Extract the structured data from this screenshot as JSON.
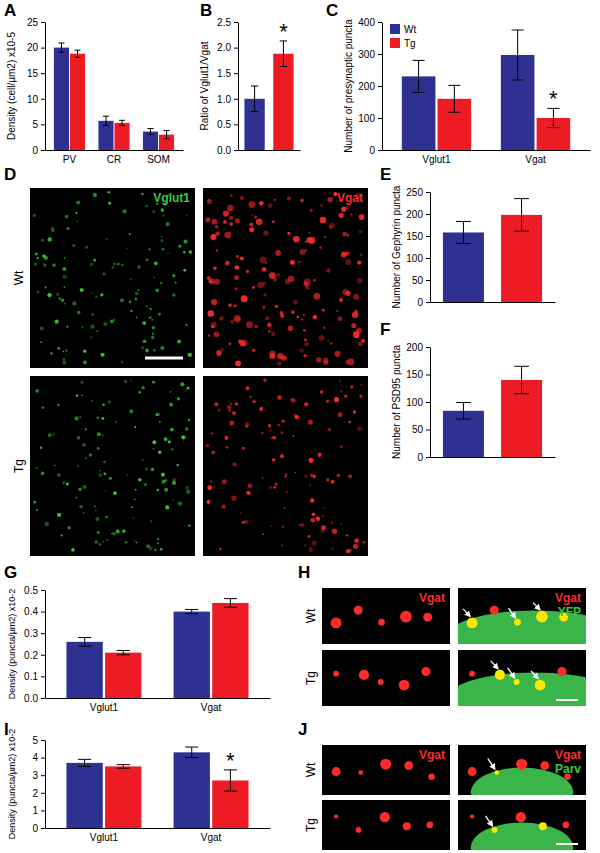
{
  "chart_data": [
    {
      "panel": "A",
      "type": "bar",
      "y_label": "Density (cell/µm2) x10-5",
      "categories": [
        "PV",
        "CR",
        "SOM"
      ],
      "series": [
        {
          "color": "#2e3192",
          "values": [
            20.0,
            5.7,
            3.6
          ],
          "errors": [
            0.9,
            0.9,
            0.6
          ]
        },
        {
          "color": "#ed1c24",
          "values": [
            18.8,
            5.3,
            3.0
          ],
          "errors": [
            0.7,
            0.5,
            0.8
          ]
        }
      ],
      "ylim": [
        0,
        25
      ],
      "yticks": [
        0,
        5,
        10,
        15,
        20,
        25
      ]
    },
    {
      "panel": "B",
      "type": "bar",
      "y_label": "Ratio of Vglut1/Vgat",
      "categories": [
        null,
        null
      ],
      "values": [
        1.0,
        1.88
      ],
      "errors": [
        0.25,
        0.25
      ],
      "colors": [
        "#2e3192",
        "#ed1c24"
      ],
      "ylim": [
        0,
        2.5
      ],
      "yticks": [
        {
          "value": 0,
          "label": "0.0"
        },
        0.5,
        {
          "value": 1,
          "label": "1.0"
        },
        1.5,
        {
          "value": 2,
          "label": "2.0"
        },
        2.5
      ],
      "annotations": [
        {
          "text": "*",
          "category": 1
        }
      ]
    },
    {
      "panel": "C",
      "type": "bar",
      "y_label": "Number of presynaptic puncta",
      "categories": [
        "Vglut1",
        "Vgat"
      ],
      "series": [
        {
          "name": "Wt",
          "color": "#2e3192",
          "values": [
            230,
            297
          ],
          "errors": [
            50,
            78
          ]
        },
        {
          "name": "Tg",
          "color": "#ed1c24",
          "values": [
            160,
            100
          ],
          "errors": [
            42,
            30
          ]
        }
      ],
      "ylim": [
        0,
        400
      ],
      "yticks": [
        0,
        100,
        200,
        300,
        400
      ],
      "legend": "top-left",
      "annotations": [
        {
          "text": "*",
          "category": 1,
          "series": 1
        }
      ]
    },
    {
      "panel": "E",
      "type": "bar",
      "y_label": "Number of Gephyrin puncta",
      "categories": [
        null,
        null
      ],
      "values": [
        158,
        198
      ],
      "errors": [
        25,
        37
      ],
      "colors": [
        "#2e3192",
        "#ed1c24"
      ],
      "ylim": [
        0,
        250
      ],
      "yticks": [
        0,
        50,
        100,
        150,
        200,
        250
      ]
    },
    {
      "panel": "F",
      "type": "bar",
      "y_label": "Number of PSD95 puncta",
      "categories": [
        null,
        null
      ],
      "values": [
        84,
        140
      ],
      "errors": [
        15,
        25
      ],
      "colors": [
        "#2e3192",
        "#ed1c24"
      ],
      "ylim": [
        0,
        200
      ],
      "yticks": [
        0,
        50,
        100,
        150,
        200
      ]
    },
    {
      "panel": "G",
      "type": "bar",
      "y_label": "Density (puncta/µm2) x10-2",
      "categories": [
        "Vglut1",
        "Vgat"
      ],
      "series": [
        {
          "color": "#2e3192",
          "values": [
            0.26,
            0.4
          ],
          "errors": [
            0.02,
            0.01
          ]
        },
        {
          "color": "#ed1c24",
          "values": [
            0.21,
            0.44
          ],
          "errors": [
            0.01,
            0.02
          ]
        }
      ],
      "ylim": [
        0,
        0.5
      ],
      "yticks": [
        {
          "value": 0,
          "label": "0.0"
        },
        0.1,
        0.2,
        0.3,
        0.4,
        0.5
      ]
    },
    {
      "panel": "I",
      "type": "bar",
      "y_label": "Density (puncta/µm2) x10-2",
      "categories": [
        "Vglut1",
        "Vgat"
      ],
      "series": [
        {
          "color": "#2e3192",
          "values": [
            3.7,
            4.3
          ],
          "errors": [
            0.2,
            0.3
          ]
        },
        {
          "color": "#ed1c24",
          "values": [
            3.5,
            2.7
          ],
          "errors": [
            0.1,
            0.6
          ]
        }
      ],
      "ylim": [
        0,
        5
      ],
      "yticks": [
        0,
        1,
        2,
        3,
        4,
        5
      ],
      "annotations": [
        {
          "text": "*",
          "category": 1,
          "series": 1
        }
      ]
    }
  ],
  "image_panels": [
    {
      "panel": "D",
      "rows": [
        "Wt",
        "Tg"
      ],
      "columns": [
        {
          "labels": [
            "Vglut1"
          ],
          "colors": [
            "#3cc83c"
          ]
        },
        {
          "labels": [
            "Vgat"
          ],
          "colors": [
            "#ff2a2a"
          ]
        }
      ]
    },
    {
      "panel": "H",
      "rows": [
        "Wt",
        "Tg"
      ],
      "columns": [
        {
          "labels": [
            "Vgat"
          ],
          "colors": [
            "#ff2a2a"
          ]
        },
        {
          "labels": [
            "Vgat",
            "YFP"
          ],
          "colors": [
            "#ff2a2a",
            "#3cc83c"
          ]
        }
      ]
    },
    {
      "panel": "J",
      "rows": [
        "Wt",
        "Tg"
      ],
      "columns": [
        {
          "labels": [
            "Vgat"
          ],
          "colors": [
            "#ff2a2a"
          ]
        },
        {
          "labels": [
            "Vgat",
            "Parv"
          ],
          "colors": [
            "#ff2a2a",
            "#3cc83c"
          ]
        }
      ]
    }
  ]
}
